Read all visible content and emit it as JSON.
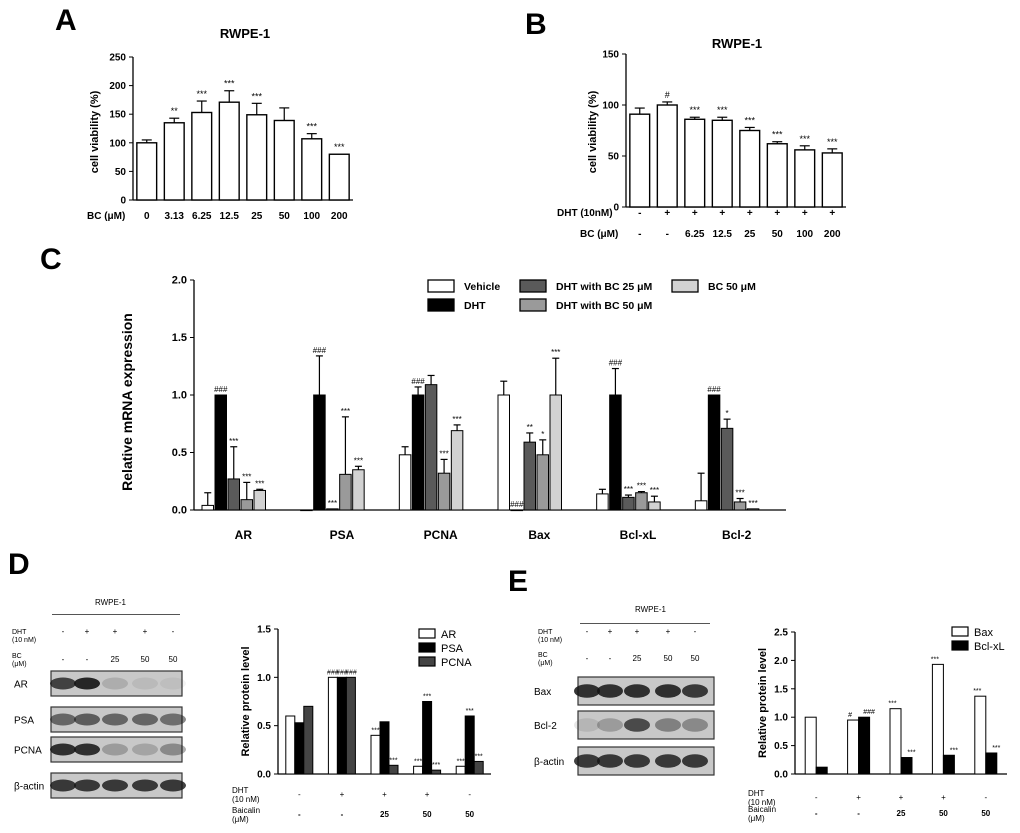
{
  "panels": {
    "A": "A",
    "B": "B",
    "C": "C",
    "D": "D",
    "E": "E"
  },
  "chart_data": [
    {
      "id": "A",
      "type": "bar",
      "title": "RWPE-1",
      "ylabel": "cell viability (%)",
      "ylim": [
        0,
        200
      ],
      "yticks": [
        0,
        50,
        100,
        150,
        200,
        250
      ],
      "row_labels": [
        "BC (μM)"
      ],
      "categories": [
        "0",
        "3.13",
        "6.25",
        "12.5",
        "25",
        "50",
        "100",
        "200"
      ],
      "values": [
        100,
        135,
        153,
        171,
        149,
        139,
        107,
        80
      ],
      "errors": [
        5,
        8,
        20,
        20,
        20,
        22,
        9,
        0
      ],
      "significance": [
        "",
        "**",
        "***",
        "***",
        "***",
        "",
        "***",
        "***"
      ]
    },
    {
      "id": "B",
      "type": "bar",
      "title": "RWPE-1",
      "ylabel": "cell viability (%)",
      "ylim": [
        0,
        150
      ],
      "yticks": [
        0,
        50,
        100,
        150
      ],
      "row_labels": [
        "DHT (10nM)",
        "BC (μM)"
      ],
      "rows": [
        [
          "-",
          "+",
          "+",
          "+",
          "+",
          "+",
          "+",
          "+"
        ],
        [
          "-",
          "-",
          "6.25",
          "12.5",
          "25",
          "50",
          "100",
          "200"
        ]
      ],
      "values": [
        91,
        100,
        86,
        85,
        75,
        62,
        56,
        53
      ],
      "errors": [
        6,
        3,
        2,
        3,
        3,
        2,
        4,
        4
      ],
      "significance": [
        "",
        "#",
        "***",
        "***",
        "***",
        "***",
        "***",
        "***"
      ]
    },
    {
      "id": "C",
      "type": "bar",
      "ylabel": "Relative mRNA expression",
      "ylim": [
        0,
        2.0
      ],
      "yticks": [
        "0.0",
        "0.5",
        "1.0",
        "1.5",
        "2.0"
      ],
      "categories": [
        "AR",
        "PSA",
        "PCNA",
        "Bax",
        "Bcl-xL",
        "Bcl-2"
      ],
      "series": [
        {
          "name": "Vehicle",
          "color": "#ffffff",
          "values": [
            0.04,
            0.0,
            0.48,
            1.0,
            0.14,
            0.08
          ],
          "errors": [
            0.11,
            0,
            0.07,
            0.12,
            0.04,
            0.24
          ],
          "sig": [
            "",
            "",
            "",
            "",
            "",
            ""
          ]
        },
        {
          "name": "DHT",
          "color": "#000000",
          "values": [
            1.0,
            1.0,
            1.0,
            0.0,
            1.0,
            1.0
          ],
          "errors": [
            0,
            0.34,
            0.07,
            0,
            0.23,
            0
          ],
          "sig": [
            "###",
            "###",
            "###",
            "###",
            "###",
            "###"
          ]
        },
        {
          "name": "DHT with BC 25 μM",
          "color": "#5a5a5a",
          "values": [
            0.27,
            0.01,
            1.09,
            0.59,
            0.11,
            0.71
          ],
          "errors": [
            0.28,
            0,
            0.08,
            0.08,
            0.02,
            0.08
          ],
          "sig": [
            "***",
            "***",
            "",
            "**",
            "***",
            "*"
          ]
        },
        {
          "name": "DHT with BC 50 μM",
          "color": "#9a9a9a",
          "values": [
            0.09,
            0.31,
            0.32,
            0.48,
            0.15,
            0.07
          ],
          "errors": [
            0.15,
            0.5,
            0.12,
            0.13,
            0.01,
            0.03
          ],
          "sig": [
            "***",
            "***",
            "***",
            "*",
            "***",
            "***"
          ]
        },
        {
          "name": "BC 50 μM",
          "color": "#d2d2d2",
          "values": [
            0.17,
            0.35,
            0.69,
            1.0,
            0.07,
            0.01
          ],
          "errors": [
            0.01,
            0.03,
            0.05,
            0.32,
            0.05,
            0
          ],
          "sig": [
            "***",
            "***",
            "***",
            "***",
            "***",
            "***"
          ]
        }
      ]
    },
    {
      "id": "D",
      "type": "bar",
      "ylabel": "Relative protein level",
      "ylim": [
        0,
        1.5
      ],
      "yticks": [
        "0.0",
        "0.5",
        "1.0",
        "1.5"
      ],
      "row_labels": [
        "DHT\n(10 nM)",
        "Baicalin\n(μM)"
      ],
      "rows": [
        [
          "-",
          "+",
          "+",
          "+",
          "-"
        ],
        [
          "-",
          "-",
          "25",
          "50",
          "50"
        ]
      ],
      "series": [
        {
          "name": "AR",
          "color": "#ffffff",
          "values": [
            0.6,
            1.0,
            0.4,
            0.08,
            0.08
          ],
          "sig": [
            "",
            "###",
            "***",
            "***",
            "***"
          ]
        },
        {
          "name": "PSA",
          "color": "#000000",
          "values": [
            0.53,
            1.0,
            0.54,
            0.75,
            0.6
          ],
          "sig": [
            "",
            "###",
            "",
            "***",
            "***"
          ]
        },
        {
          "name": "PCNA",
          "color": "#444444",
          "values": [
            0.7,
            1.0,
            0.09,
            0.04,
            0.13
          ],
          "sig": [
            "",
            "###",
            "***",
            "***",
            "***"
          ]
        }
      ]
    },
    {
      "id": "E",
      "type": "bar",
      "ylabel": "Relative protein level",
      "ylim": [
        0,
        2.5
      ],
      "yticks": [
        "0.0",
        "0.5",
        "1.0",
        "1.5",
        "2.0",
        "2.5"
      ],
      "row_labels": [
        "DHT\n(10 nM)",
        "Baicalin\n(μM)"
      ],
      "rows": [
        [
          "-",
          "+",
          "+",
          "+",
          "-"
        ],
        [
          "-",
          "-",
          "25",
          "50",
          "50"
        ]
      ],
      "series": [
        {
          "name": "Bax",
          "color": "#ffffff",
          "values": [
            1.0,
            0.95,
            1.15,
            1.93,
            1.37
          ],
          "sig": [
            "",
            "#",
            "***",
            "***",
            "***"
          ]
        },
        {
          "name": "Bcl-xL",
          "color": "#000000",
          "values": [
            0.12,
            1.0,
            0.29,
            0.33,
            0.37
          ],
          "sig": [
            "",
            "###",
            "***",
            "***",
            "***"
          ]
        }
      ]
    }
  ],
  "blots": {
    "D": {
      "title": "RWPE-1",
      "cond_labels": [
        "DHT\n(10 nM)",
        "BC\n(μM)"
      ],
      "rows": [
        [
          "-",
          "+",
          "+",
          "+",
          "-"
        ],
        [
          "-",
          "-",
          "25",
          "50",
          "50"
        ]
      ],
      "bands": [
        "AR",
        "PSA",
        "PCNA",
        "β-actin"
      ]
    },
    "E": {
      "title": "RWPE-1",
      "cond_labels": [
        "DHT\n(10 nM)",
        "BC\n(μM)"
      ],
      "rows": [
        [
          "-",
          "+",
          "+",
          "+",
          "-"
        ],
        [
          "-",
          "-",
          "25",
          "50",
          "50"
        ]
      ],
      "bands": [
        "Bax",
        "Bcl-2",
        "β-actin"
      ]
    }
  }
}
